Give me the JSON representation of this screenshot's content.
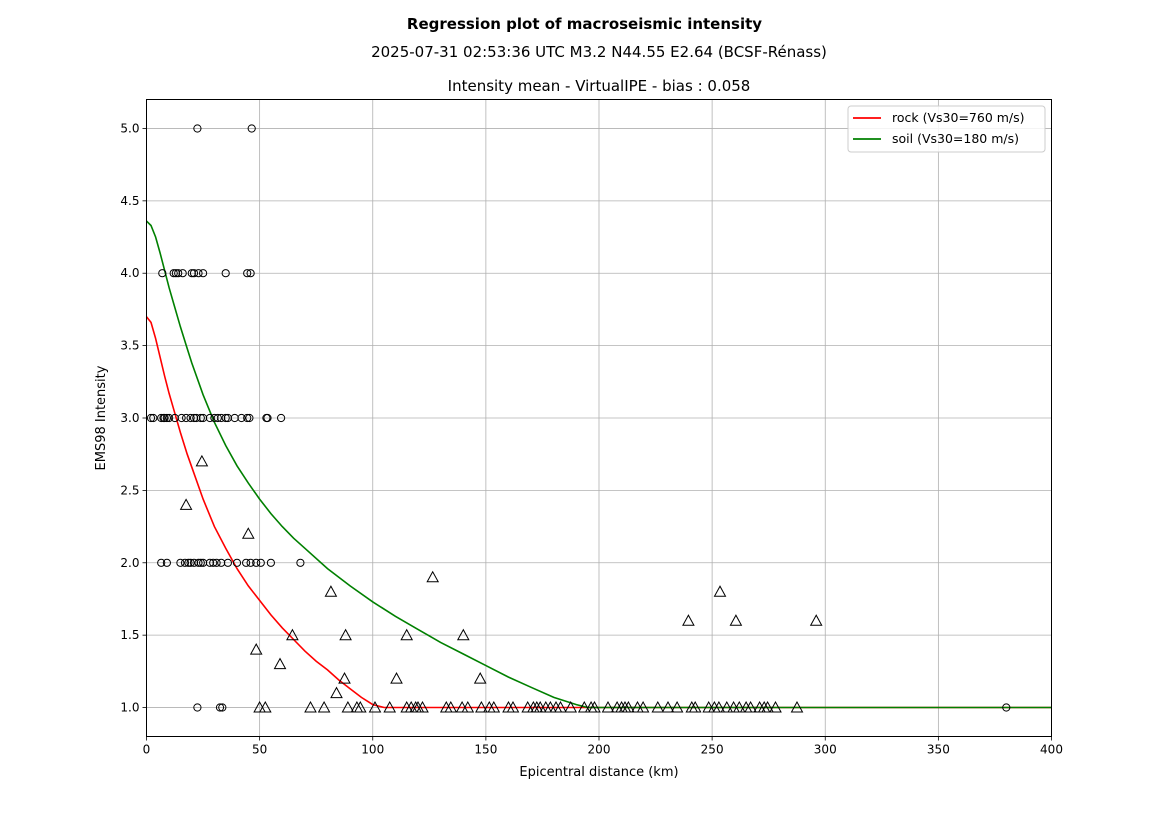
{
  "chart_data": {
    "type": "scatter",
    "title": "Regression plot of macroseismic intensity",
    "subtitle": "2025-07-31 02:53:36 UTC M3.2 N44.55 E2.64 (BCSF-Rénass)",
    "plot_title": "Intensity mean - VirtualIPE - bias : 0.058",
    "xlabel": "Epicentral distance (km)",
    "ylabel": "EMS98 Intensity",
    "xlim": [
      0,
      400
    ],
    "ylim": [
      0.8,
      5.2
    ],
    "xticks": [
      0,
      50,
      100,
      150,
      200,
      250,
      300,
      350,
      400
    ],
    "yticks": [
      1.0,
      1.5,
      2.0,
      2.5,
      3.0,
      3.5,
      4.0,
      4.5,
      5.0
    ],
    "grid": true,
    "legend_position": "top-right",
    "curves": [
      {
        "name": "rock (Vs30=760 m/s)",
        "color": "#ff0000",
        "x": [
          0,
          2,
          4,
          6,
          8,
          10,
          12,
          15,
          18,
          20,
          25,
          30,
          35,
          40,
          45,
          50,
          55,
          60,
          65,
          70,
          75,
          80,
          85,
          90,
          95,
          100,
          105,
          110,
          150,
          200,
          300,
          400
        ],
        "y": [
          3.7,
          3.66,
          3.55,
          3.42,
          3.29,
          3.17,
          3.06,
          2.9,
          2.75,
          2.66,
          2.44,
          2.25,
          2.1,
          1.96,
          1.84,
          1.74,
          1.64,
          1.55,
          1.47,
          1.39,
          1.32,
          1.26,
          1.19,
          1.13,
          1.07,
          1.02,
          1.0,
          1.0,
          1.0,
          1.0,
          1.0,
          1.0
        ]
      },
      {
        "name": "soil (Vs30=180 m/s)",
        "color": "#008000",
        "x": [
          0,
          2,
          4,
          6,
          8,
          10,
          12,
          15,
          18,
          20,
          25,
          30,
          35,
          40,
          45,
          50,
          55,
          60,
          65,
          70,
          80,
          90,
          100,
          110,
          120,
          130,
          140,
          150,
          160,
          170,
          180,
          190,
          195,
          200,
          300,
          400
        ],
        "y": [
          4.36,
          4.33,
          4.25,
          4.14,
          4.02,
          3.9,
          3.79,
          3.63,
          3.48,
          3.38,
          3.16,
          2.97,
          2.81,
          2.67,
          2.55,
          2.44,
          2.34,
          2.25,
          2.17,
          2.1,
          1.96,
          1.84,
          1.73,
          1.63,
          1.54,
          1.45,
          1.37,
          1.29,
          1.21,
          1.14,
          1.07,
          1.02,
          1.0,
          1.0,
          1.0,
          1.0
        ]
      }
    ],
    "circles": [
      [
        22.5,
        5.0
      ],
      [
        46.5,
        5.0
      ],
      [
        7,
        4.0
      ],
      [
        12,
        4.0
      ],
      [
        13,
        4.0
      ],
      [
        14,
        4.0
      ],
      [
        16,
        4.0
      ],
      [
        20,
        4.0
      ],
      [
        21,
        4.0
      ],
      [
        23,
        4.0
      ],
      [
        25,
        4.0
      ],
      [
        35,
        4.0
      ],
      [
        44.5,
        4.0
      ],
      [
        46,
        4.0
      ],
      [
        2,
        3.0
      ],
      [
        3,
        3.0
      ],
      [
        6.5,
        3.0
      ],
      [
        7.5,
        3.0
      ],
      [
        8,
        3.0
      ],
      [
        9,
        3.0
      ],
      [
        10,
        3.0
      ],
      [
        12.5,
        3.0
      ],
      [
        15.5,
        3.0
      ],
      [
        17.5,
        3.0
      ],
      [
        19.5,
        3.0
      ],
      [
        21,
        3.0
      ],
      [
        22,
        3.0
      ],
      [
        24,
        3.0
      ],
      [
        25,
        3.0
      ],
      [
        28,
        3.0
      ],
      [
        30,
        3.0
      ],
      [
        31.5,
        3.0
      ],
      [
        33,
        3.0
      ],
      [
        35,
        3.0
      ],
      [
        36,
        3.0
      ],
      [
        39,
        3.0
      ],
      [
        42,
        3.0
      ],
      [
        44.5,
        3.0
      ],
      [
        45.5,
        3.0
      ],
      [
        53,
        3.0
      ],
      [
        53.5,
        3.0
      ],
      [
        59.5,
        3.0
      ],
      [
        6.5,
        2.0
      ],
      [
        9,
        2.0
      ],
      [
        15,
        2.0
      ],
      [
        17,
        2.0
      ],
      [
        18.5,
        2.0
      ],
      [
        19.5,
        2.0
      ],
      [
        21,
        2.0
      ],
      [
        23,
        2.0
      ],
      [
        24,
        2.0
      ],
      [
        25,
        2.0
      ],
      [
        28,
        2.0
      ],
      [
        29.5,
        2.0
      ],
      [
        31,
        2.0
      ],
      [
        33,
        2.0
      ],
      [
        36,
        2.0
      ],
      [
        40,
        2.0
      ],
      [
        44,
        2.0
      ],
      [
        46,
        2.0
      ],
      [
        48.5,
        2.0
      ],
      [
        50.5,
        2.0
      ],
      [
        55,
        2.0
      ],
      [
        68,
        2.0
      ],
      [
        22.5,
        1.0
      ],
      [
        32.5,
        1.0
      ],
      [
        33.5,
        1.0
      ],
      [
        380,
        1.0
      ]
    ],
    "triangles": [
      [
        24.5,
        2.7
      ],
      [
        17.5,
        2.4
      ],
      [
        45,
        2.2
      ],
      [
        126.5,
        1.9
      ],
      [
        81.5,
        1.8
      ],
      [
        253.5,
        1.8
      ],
      [
        239.5,
        1.6
      ],
      [
        260.5,
        1.6
      ],
      [
        296,
        1.6
      ],
      [
        64.5,
        1.5
      ],
      [
        88,
        1.5
      ],
      [
        115,
        1.5
      ],
      [
        140,
        1.5
      ],
      [
        48.5,
        1.4
      ],
      [
        59,
        1.3
      ],
      [
        87.5,
        1.2
      ],
      [
        110.5,
        1.2
      ],
      [
        147.5,
        1.2
      ],
      [
        84,
        1.1
      ],
      [
        50,
        1.0
      ],
      [
        52.5,
        1.0
      ],
      [
        72.5,
        1.0
      ],
      [
        78.5,
        1.0
      ],
      [
        89,
        1.0
      ],
      [
        93,
        1.0
      ],
      [
        94.5,
        1.0
      ],
      [
        101,
        1.0
      ],
      [
        107.5,
        1.0
      ],
      [
        115,
        1.0
      ],
      [
        117,
        1.0
      ],
      [
        119,
        1.0
      ],
      [
        120,
        1.0
      ],
      [
        122,
        1.0
      ],
      [
        132.5,
        1.0
      ],
      [
        134.5,
        1.0
      ],
      [
        139.5,
        1.0
      ],
      [
        142,
        1.0
      ],
      [
        148,
        1.0
      ],
      [
        151.5,
        1.0
      ],
      [
        153.5,
        1.0
      ],
      [
        160,
        1.0
      ],
      [
        162,
        1.0
      ],
      [
        168.5,
        1.0
      ],
      [
        171,
        1.0
      ],
      [
        172.5,
        1.0
      ],
      [
        174,
        1.0
      ],
      [
        176.5,
        1.0
      ],
      [
        178.5,
        1.0
      ],
      [
        181,
        1.0
      ],
      [
        183,
        1.0
      ],
      [
        187.5,
        1.0
      ],
      [
        193.5,
        1.0
      ],
      [
        196.5,
        1.0
      ],
      [
        198,
        1.0
      ],
      [
        204,
        1.0
      ],
      [
        208,
        1.0
      ],
      [
        210,
        1.0
      ],
      [
        211.5,
        1.0
      ],
      [
        213,
        1.0
      ],
      [
        217,
        1.0
      ],
      [
        219.5,
        1.0
      ],
      [
        226,
        1.0
      ],
      [
        230.5,
        1.0
      ],
      [
        234.5,
        1.0
      ],
      [
        241,
        1.0
      ],
      [
        242.5,
        1.0
      ],
      [
        248.5,
        1.0
      ],
      [
        251,
        1.0
      ],
      [
        253,
        1.0
      ],
      [
        256.5,
        1.0
      ],
      [
        259.5,
        1.0
      ],
      [
        262,
        1.0
      ],
      [
        265,
        1.0
      ],
      [
        267,
        1.0
      ],
      [
        271,
        1.0
      ],
      [
        273,
        1.0
      ],
      [
        274.5,
        1.0
      ],
      [
        278,
        1.0
      ],
      [
        287.5,
        1.0
      ]
    ]
  }
}
